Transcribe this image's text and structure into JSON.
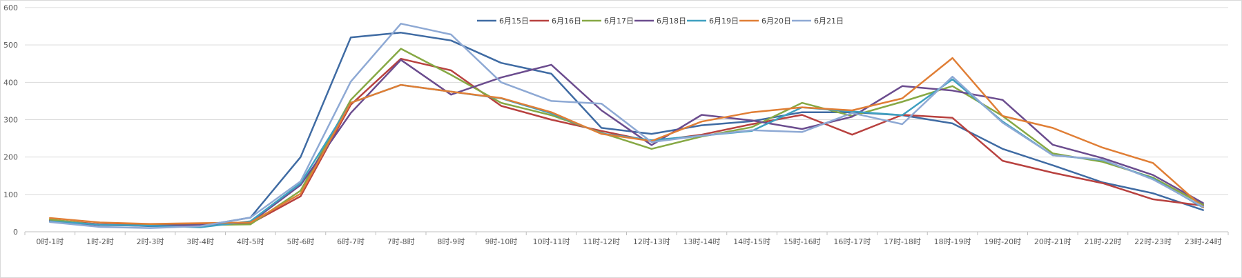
{
  "chart_data": {
    "type": "line",
    "title": "",
    "xlabel": "",
    "ylabel": "",
    "ylim": [
      0,
      600
    ],
    "yticks": [
      "0",
      "100",
      "200",
      "300",
      "400",
      "500",
      "600"
    ],
    "grid": "horizontal",
    "legend_position": "top-center",
    "categories": [
      "0时-1时",
      "1时-2时",
      "2时-3时",
      "3时-4时",
      "4时-5时",
      "5时-6时",
      "6时-7时",
      "7时-8时",
      "8时-9时",
      "9时-10时",
      "10时-11时",
      "11时-12时",
      "12时-13时",
      "13时-14时",
      "14时-15时",
      "15时-16时",
      "16时-17时",
      "17时-18时",
      "18时-19时",
      "19时-20时",
      "20时-21时",
      "21时-22时",
      "22时-23时",
      "23时-24时"
    ],
    "series": [
      {
        "name": "6月15日",
        "color": "#3f6ba3",
        "values": [
          30,
          20,
          15,
          15,
          38,
          200,
          520,
          533,
          512,
          452,
          423,
          278,
          262,
          285,
          296,
          320,
          320,
          312,
          290,
          222,
          178,
          132,
          103,
          58
        ]
      },
      {
        "name": "6月16日",
        "color": "#b8413f",
        "values": [
          32,
          20,
          18,
          20,
          22,
          95,
          340,
          463,
          432,
          337,
          300,
          270,
          242,
          260,
          288,
          313,
          260,
          313,
          305,
          190,
          158,
          130,
          87,
          70
        ]
      },
      {
        "name": "6月17日",
        "color": "#86a844",
        "values": [
          33,
          18,
          17,
          18,
          20,
          110,
          353,
          490,
          420,
          345,
          312,
          265,
          222,
          255,
          280,
          345,
          310,
          348,
          390,
          310,
          210,
          187,
          145,
          73
        ]
      },
      {
        "name": "6月18日",
        "color": "#6b4c8e",
        "values": [
          27,
          18,
          16,
          18,
          25,
          125,
          318,
          460,
          367,
          413,
          447,
          325,
          232,
          313,
          298,
          275,
          308,
          390,
          378,
          353,
          233,
          197,
          152,
          77
        ]
      },
      {
        "name": "6月19日",
        "color": "#3ea0c0",
        "values": [
          28,
          19,
          16,
          12,
          28,
          130,
          345,
          393,
          375,
          357,
          317,
          263,
          245,
          257,
          270,
          333,
          322,
          312,
          408,
          295,
          205,
          192,
          142,
          65
        ]
      },
      {
        "name": "6月20日",
        "color": "#e07e35",
        "values": [
          37,
          25,
          21,
          23,
          25,
          102,
          345,
          393,
          375,
          358,
          320,
          262,
          243,
          295,
          320,
          333,
          325,
          357,
          465,
          310,
          278,
          225,
          184,
          65
        ]
      },
      {
        "name": "6月21日",
        "color": "#8ea9d4",
        "values": [
          26,
          13,
          10,
          15,
          38,
          135,
          402,
          557,
          528,
          400,
          350,
          343,
          240,
          257,
          272,
          267,
          318,
          288,
          415,
          292,
          205,
          193,
          140,
          67
        ]
      }
    ]
  }
}
